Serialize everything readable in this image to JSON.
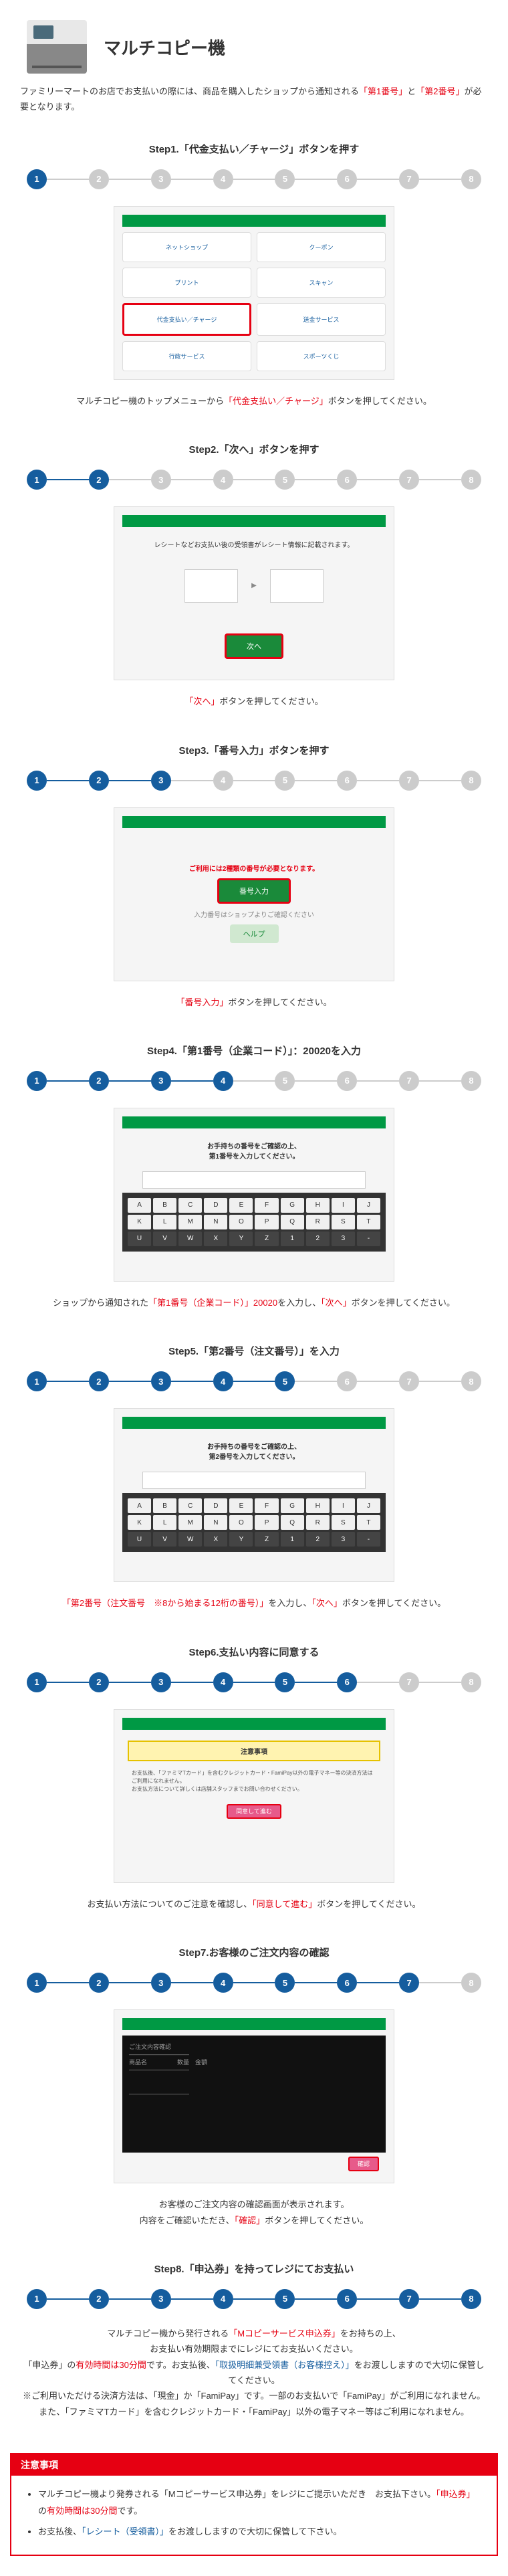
{
  "header": {
    "title": "マルチコピー機"
  },
  "intro": {
    "pre": "ファミリーマートのお店でお支払いの際には、商品を購入したショップから通知される",
    "num1": "「第1番号」",
    "mid": "と",
    "num2": "「第2番号」",
    "post": "が必要となります。"
  },
  "steps": [
    {
      "title": "Step1.「代金支払い／チャージ」ボタンを押す",
      "active": 1,
      "captionParts": [
        {
          "t": "マルチコピー機のトップメニューから"
        },
        {
          "t": "「代金支払い／チャージ」",
          "cls": "red"
        },
        {
          "t": "ボタンを押してください。"
        }
      ],
      "mock": "menu",
      "menuItems": [
        "ネットショップ",
        "クーポン",
        "プリント",
        "スキャン",
        "代金支払い／チャージ",
        "送金サービス",
        "行政サービス",
        "スポーツくじ"
      ],
      "highlightIdx": 4
    },
    {
      "title": "Step2.「次へ」ボタンを押す",
      "active": 2,
      "captionParts": [
        {
          "t": "「次へ」",
          "cls": "red"
        },
        {
          "t": "ボタンを押してください。"
        }
      ],
      "mock": "next",
      "btn": "次へ",
      "helper": "レシートなどお支払い後の受領書がレシート情報に記載されます。"
    },
    {
      "title": "Step3.「番号入力」ボタンを押す",
      "active": 3,
      "captionParts": [
        {
          "t": "「番号入力」",
          "cls": "red"
        },
        {
          "t": "ボタンを押してください。"
        }
      ],
      "mock": "numbtn",
      "btn": "番号入力",
      "help": "ヘルプ",
      "msg": "ご利用には2種類の番号が必要となります。"
    },
    {
      "title": "Step4.「第1番号（企業コード）」：20020を入力",
      "active": 4,
      "captionParts": [
        {
          "t": "ショップから通知された"
        },
        {
          "t": "「第1番号（企業コード）」20020",
          "cls": "red"
        },
        {
          "t": "を入力し、"
        },
        {
          "t": "「次へ」",
          "cls": "red"
        },
        {
          "t": "ボタンを押してください。"
        }
      ],
      "mock": "keypad",
      "msg": "お手持ちの番号をご確認の上、\n第1番号を入力してください。"
    },
    {
      "title": "Step5.「第2番号（注文番号）」を入力",
      "active": 5,
      "captionParts": [
        {
          "t": "「第2番号（注文番号　※8から始まる12桁の番号）」",
          "cls": "red"
        },
        {
          "t": "を入力し、"
        },
        {
          "t": "「次へ」",
          "cls": "red"
        },
        {
          "t": "ボタンを押してください。"
        }
      ],
      "mock": "keypad",
      "msg": "お手持ちの番号をご確認の上、\n第2番号を入力してください。"
    },
    {
      "title": "Step6.支払い内容に同意する",
      "active": 6,
      "captionParts": [
        {
          "t": "お支払い方法についてのご注意を確認し、"
        },
        {
          "t": "「同意して進む」",
          "cls": "red"
        },
        {
          "t": "ボタンを押してください。"
        }
      ],
      "mock": "caution",
      "banner": "注意事項",
      "btn": "同意して進む"
    },
    {
      "title": "Step7.お客様のご注文内容の確認",
      "active": 7,
      "captionParts": [
        {
          "t": "お客様のご注文内容の確認画面が表示されます。"
        },
        {
          "t": "\n"
        },
        {
          "t": "内容をご確認いただき、"
        },
        {
          "t": "「確認」",
          "cls": "red"
        },
        {
          "t": "ボタンを押してください。"
        }
      ],
      "mock": "confirm",
      "btn": "確認"
    },
    {
      "title": "Step8.「申込券」を持ってレジにてお支払い",
      "active": 8,
      "captionParts": [
        {
          "t": "マルチコピー機から発行される"
        },
        {
          "t": "「Mコピーサービス申込券」",
          "cls": "red"
        },
        {
          "t": "をお持ちの上、"
        },
        {
          "t": "\n"
        },
        {
          "t": "お支払い有効期限までにレジにてお支払いください。"
        },
        {
          "t": "\n"
        },
        {
          "t": "「申込券」の"
        },
        {
          "t": "有効時間は30分間",
          "cls": "red"
        },
        {
          "t": "です。お支払後、"
        },
        {
          "t": "「取扱明細兼受領書（お客様控え）」",
          "cls": "blue-text"
        },
        {
          "t": "をお渡ししますので大切に保管してください。"
        },
        {
          "t": "\n"
        },
        {
          "t": "※ご利用いただける決済方法は、「現金」か「FamiPay」です。一部のお支払いで「FamiPay」がご利用になれません。また、「ファミマTカード」を含むクレジットカード・「FamiPay」以外の電子マネー等はご利用になれません。"
        }
      ],
      "mock": "none"
    }
  ],
  "totalSteps": 8,
  "keypadKeys": [
    "A",
    "B",
    "C",
    "D",
    "E",
    "F",
    "G",
    "H",
    "I",
    "J",
    "K",
    "L",
    "M",
    "N",
    "O",
    "P",
    "Q",
    "R",
    "S",
    "T",
    "U",
    "V",
    "W",
    "X",
    "Y",
    "Z",
    "1",
    "2",
    "3",
    "-"
  ],
  "notes": {
    "title": "注意事項",
    "items": [
      {
        "parts": [
          {
            "t": "マルチコピー機より発券される「Mコピーサービス申込券」をレジにご提示いただき　お支払下さい。"
          },
          {
            "t": "「申込券」",
            "cls": "red"
          },
          {
            "t": "の"
          },
          {
            "t": "有効時間は30分間",
            "cls": "red"
          },
          {
            "t": "です。"
          }
        ]
      },
      {
        "parts": [
          {
            "t": "お支払後、"
          },
          {
            "t": "「レシート（受領書）」",
            "cls": "blue-text"
          },
          {
            "t": "をお渡ししますので大切に保管して下さい。"
          }
        ]
      }
    ]
  },
  "colors": {
    "primary": "#155d9e",
    "accent": "#e60012",
    "inactive": "#cccccc",
    "green": "#1a8a3a"
  }
}
